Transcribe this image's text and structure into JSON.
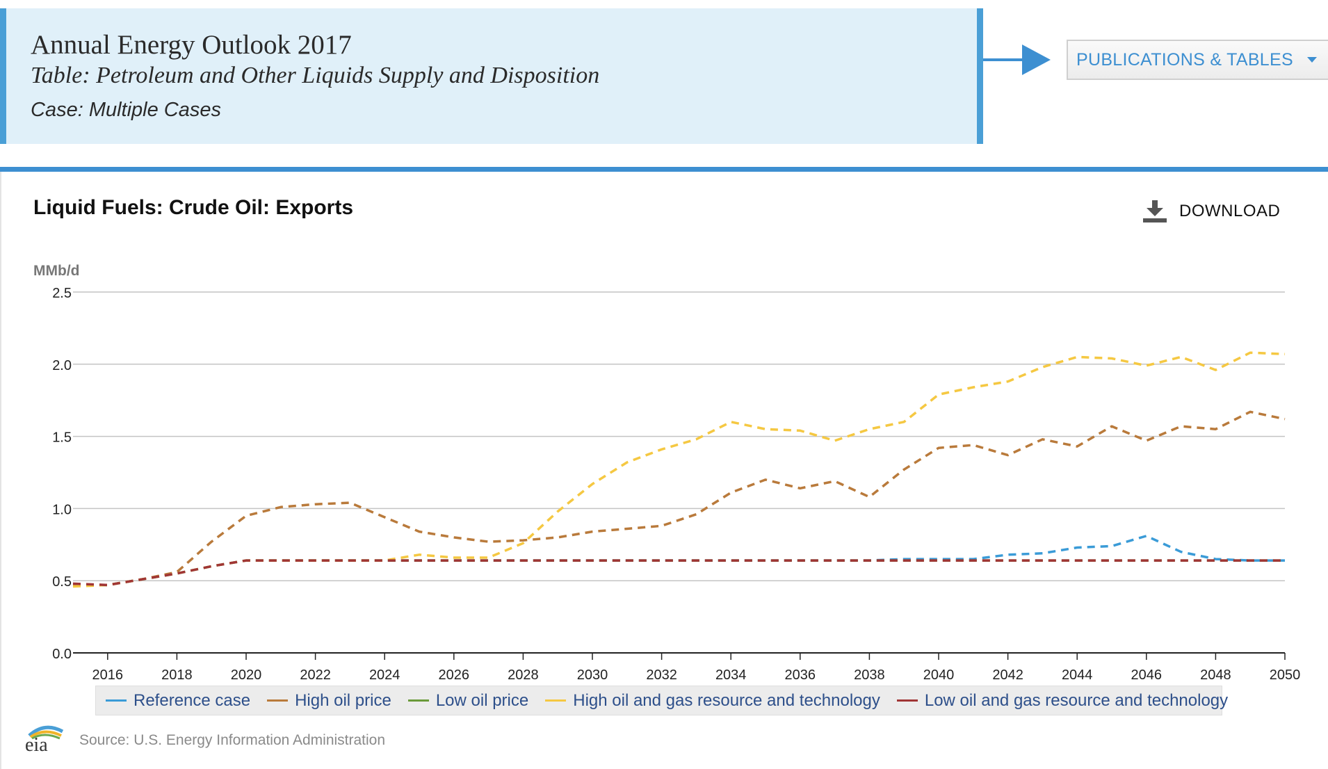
{
  "header": {
    "title": "Annual Energy Outlook 2017",
    "table": "Table: Petroleum and Other Liquids Supply and Disposition",
    "case": "Case: Multiple Cases"
  },
  "nav": {
    "publications_label": "PUBLICATIONS & TABLES"
  },
  "chart_header": {
    "title": "Liquid Fuels: Crude Oil: Exports",
    "download_label": "DOWNLOAD"
  },
  "source": {
    "text": "Source: U.S. Energy Information Administration",
    "logo_text": "eia"
  },
  "colors": {
    "accent": "#3d8fd1",
    "header_bg": "#e0f0f9",
    "reference": "#3a9bd7",
    "high_price": "#b97a3b",
    "low_price": "#6a9a3a",
    "high_resource": "#f5c842",
    "low_resource": "#a03535"
  },
  "chart_data": {
    "type": "line",
    "title": "Liquid Fuels: Crude Oil: Exports",
    "ylabel": "MMb/d",
    "xlabel": "",
    "ylim": [
      0,
      2.5
    ],
    "xlim": [
      2015,
      2050
    ],
    "yticks": [
      "0.0",
      "0.5",
      "1.0",
      "1.5",
      "2.0",
      "2.5"
    ],
    "xticks": [
      "2016",
      "2018",
      "2020",
      "2022",
      "2024",
      "2026",
      "2028",
      "2030",
      "2032",
      "2034",
      "2036",
      "2038",
      "2040",
      "2042",
      "2044",
      "2046",
      "2048",
      "2050"
    ],
    "grid": true,
    "legend_position": "bottom",
    "line_style": "dashed",
    "x": [
      2015,
      2016,
      2017,
      2018,
      2019,
      2020,
      2021,
      2022,
      2023,
      2024,
      2025,
      2026,
      2027,
      2028,
      2029,
      2030,
      2031,
      2032,
      2033,
      2034,
      2035,
      2036,
      2037,
      2038,
      2039,
      2040,
      2041,
      2042,
      2043,
      2044,
      2045,
      2046,
      2047,
      2048,
      2049,
      2050
    ],
    "series": [
      {
        "name": "Reference case",
        "color": "#3a9bd7",
        "values": [
          0.47,
          0.47,
          0.51,
          0.55,
          0.6,
          0.64,
          0.64,
          0.64,
          0.64,
          0.64,
          0.64,
          0.64,
          0.64,
          0.64,
          0.64,
          0.64,
          0.64,
          0.64,
          0.64,
          0.64,
          0.64,
          0.64,
          0.64,
          0.64,
          0.65,
          0.65,
          0.65,
          0.68,
          0.69,
          0.73,
          0.74,
          0.81,
          0.7,
          0.65,
          0.64,
          0.64
        ]
      },
      {
        "name": "High oil price",
        "color": "#b97a3b",
        "values": [
          0.47,
          0.47,
          0.51,
          0.56,
          0.77,
          0.95,
          1.01,
          1.03,
          1.04,
          0.94,
          0.84,
          0.8,
          0.77,
          0.78,
          0.8,
          0.84,
          0.86,
          0.88,
          0.96,
          1.11,
          1.2,
          1.14,
          1.19,
          1.08,
          1.27,
          1.42,
          1.44,
          1.37,
          1.48,
          1.43,
          1.57,
          1.47,
          1.57,
          1.55,
          1.67,
          1.62
        ]
      },
      {
        "name": "Low oil price",
        "color": "#6a9a3a",
        "values": [
          0.47,
          0.47,
          0.51,
          0.55,
          0.6,
          0.64,
          0.64,
          0.64,
          0.64,
          0.64,
          0.64,
          0.64,
          0.64,
          0.64,
          0.64,
          0.64,
          0.64,
          0.64,
          0.64,
          0.64,
          0.64,
          0.64,
          0.64,
          0.64,
          0.64,
          0.64,
          0.64,
          0.64,
          0.64,
          0.64,
          0.64,
          0.64,
          0.64,
          0.64,
          0.64,
          0.64
        ]
      },
      {
        "name": "High oil and gas resource and technology",
        "color": "#f5c842",
        "values": [
          0.46,
          0.47,
          0.51,
          0.55,
          0.6,
          0.64,
          0.64,
          0.64,
          0.64,
          0.64,
          0.68,
          0.66,
          0.66,
          0.76,
          0.98,
          1.17,
          1.32,
          1.41,
          1.48,
          1.6,
          1.55,
          1.54,
          1.47,
          1.55,
          1.6,
          1.79,
          1.84,
          1.88,
          1.98,
          2.05,
          2.04,
          1.99,
          2.05,
          1.96,
          2.08,
          2.07
        ]
      },
      {
        "name": "Low oil and gas resource and technology",
        "color": "#a03535",
        "values": [
          0.48,
          0.47,
          0.51,
          0.55,
          0.6,
          0.64,
          0.64,
          0.64,
          0.64,
          0.64,
          0.64,
          0.64,
          0.64,
          0.64,
          0.64,
          0.64,
          0.64,
          0.64,
          0.64,
          0.64,
          0.64,
          0.64,
          0.64,
          0.64,
          0.64,
          0.64,
          0.64,
          0.64,
          0.64,
          0.64,
          0.64,
          0.64,
          0.64,
          0.64,
          0.64,
          0.64
        ]
      }
    ]
  }
}
